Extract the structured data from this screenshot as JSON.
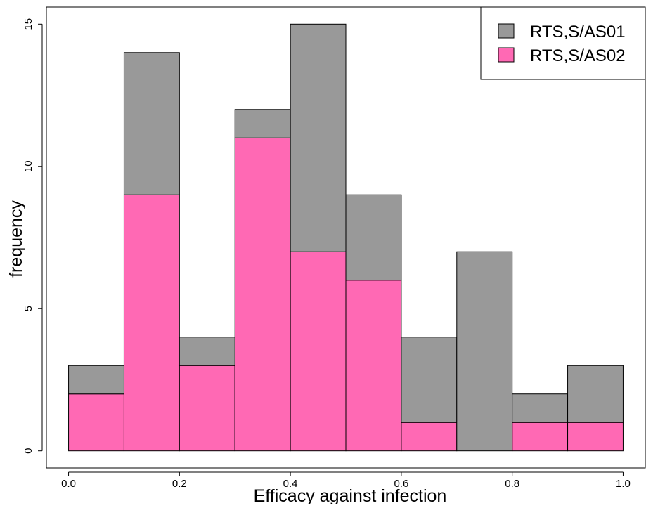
{
  "chart_data": {
    "type": "bar",
    "stacked": true,
    "title": "",
    "xlabel": "Efficacy against infection",
    "ylabel": "frequency",
    "bins": [
      [
        0.0,
        0.1
      ],
      [
        0.1,
        0.2
      ],
      [
        0.2,
        0.3
      ],
      [
        0.3,
        0.4
      ],
      [
        0.4,
        0.5
      ],
      [
        0.5,
        0.6
      ],
      [
        0.6,
        0.7
      ],
      [
        0.7,
        0.8
      ],
      [
        0.8,
        0.9
      ],
      [
        0.9,
        1.0
      ]
    ],
    "series": [
      {
        "name": "RTS,S/AS02",
        "color": "#ff69b4",
        "values": [
          2,
          9,
          3,
          11,
          7,
          6,
          1,
          0,
          1,
          1
        ]
      },
      {
        "name": "RTS,S/AS01",
        "color": "#999999",
        "values": [
          1,
          5,
          1,
          1,
          8,
          3,
          3,
          7,
          1,
          2
        ]
      }
    ],
    "xlim": [
      -0.04,
      1.04
    ],
    "ylim": [
      -0.6,
      15.6
    ],
    "xticks": [
      0.0,
      0.2,
      0.4,
      0.6,
      0.8,
      1.0
    ],
    "xtick_labels": [
      "0.0",
      "0.2",
      "0.4",
      "0.6",
      "0.8",
      "1.0"
    ],
    "yticks": [
      0,
      5,
      10,
      15
    ],
    "ytick_labels": [
      "0",
      "5",
      "10",
      "15"
    ],
    "grid": false,
    "legend": {
      "placement": "top-right",
      "entries": [
        {
          "label": "RTS,S/AS01",
          "color": "#999999"
        },
        {
          "label": "RTS,S/AS02",
          "color": "#ff69b4"
        }
      ]
    }
  }
}
